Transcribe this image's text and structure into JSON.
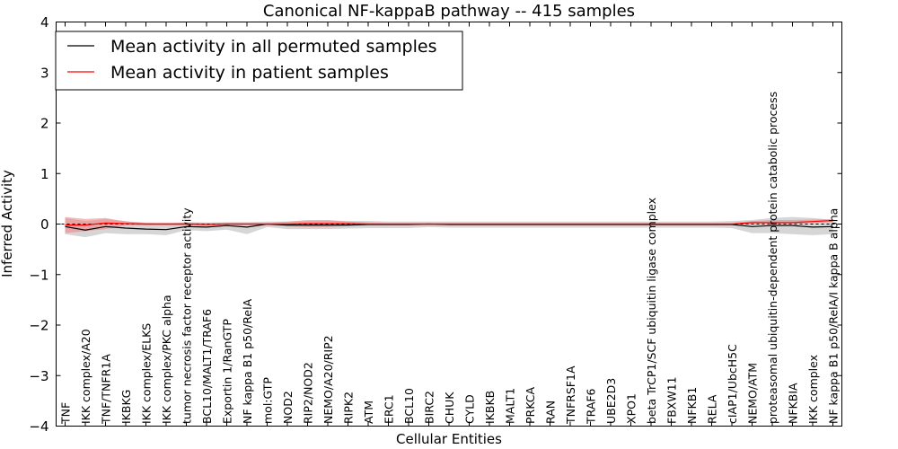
{
  "chart_data": {
    "type": "line",
    "title": "Canonical NF-kappaB pathway -- 415 samples",
    "xlabel": "Cellular Entities",
    "ylabel": "Inferred Activity",
    "ylim": [
      -4,
      4
    ],
    "yticks": [
      4,
      3,
      2,
      1,
      0,
      -1,
      -2,
      -3,
      -4
    ],
    "ytick_labels": [
      "4",
      "3",
      "2",
      "1",
      "0",
      "−1",
      "−2",
      "−3",
      "−4"
    ],
    "categories": [
      "TNF",
      "IKK complex/A20",
      "TNF/TNFR1A",
      "IKBKG",
      "IKK complex/ELKS",
      "IKK complex/PKC alpha",
      "tumor necrosis factor receptor activity",
      "BCL10/MALT1/TRAF6",
      "Exportin 1/RanGTP",
      "NF kappa B1 p50/RelA",
      "mol:GTP",
      "NOD2",
      "RIP2/NOD2",
      "NEMO/A20/RIP2",
      "RIPK2",
      "ATM",
      "ERC1",
      "BCL10",
      "BIRC2",
      "CHUK",
      "CYLD",
      "IKBKB",
      "MALT1",
      "PRKCA",
      "RAN",
      "TNFRSF1A",
      "TRAF6",
      "UBE2D3",
      "XPO1",
      "beta TrCP1/SCF ubiquitin ligase complex",
      "FBXW11",
      "NFKB1",
      "RELA",
      "cIAP1/UbcH5C",
      "NEMO/ATM",
      "proteasomal ubiquitin-dependent protein catabolic process",
      "NFKBIA",
      "IKK complex",
      "NF kappa B1 p50/RelA/I kappa B alpha"
    ],
    "legend": {
      "location": "top-left",
      "entries": [
        {
          "label": "Mean activity in all permuted samples",
          "color": "#000000"
        },
        {
          "label": "Mean activity in patient samples",
          "color": "#ff0000"
        }
      ]
    },
    "series": [
      {
        "name": "Mean activity in all permuted samples",
        "color": "#000000",
        "values": [
          -0.05,
          -0.12,
          -0.05,
          -0.08,
          -0.1,
          -0.11,
          -0.05,
          -0.06,
          -0.03,
          -0.06,
          0.0,
          -0.02,
          -0.02,
          -0.02,
          -0.02,
          -0.01,
          -0.01,
          -0.01,
          0.0,
          -0.01,
          -0.01,
          -0.01,
          -0.01,
          -0.01,
          -0.01,
          -0.01,
          -0.01,
          -0.01,
          -0.01,
          -0.01,
          -0.01,
          -0.01,
          -0.01,
          -0.01,
          -0.05,
          -0.03,
          -0.03,
          -0.06,
          -0.05
        ],
        "upper": [
          0.12,
          0.06,
          0.1,
          0.06,
          0.02,
          0.0,
          0.04,
          0.03,
          0.04,
          0.04,
          0.05,
          0.05,
          0.06,
          0.07,
          0.06,
          0.06,
          0.05,
          0.05,
          0.05,
          0.05,
          0.05,
          0.05,
          0.05,
          0.05,
          0.05,
          0.05,
          0.05,
          0.05,
          0.05,
          0.05,
          0.05,
          0.05,
          0.05,
          0.06,
          0.08,
          0.12,
          0.14,
          0.12,
          0.08
        ],
        "lower": [
          -0.2,
          -0.26,
          -0.18,
          -0.2,
          -0.2,
          -0.22,
          -0.12,
          -0.14,
          -0.11,
          -0.2,
          -0.06,
          -0.1,
          -0.1,
          -0.1,
          -0.09,
          -0.08,
          -0.08,
          -0.08,
          -0.06,
          -0.07,
          -0.07,
          -0.07,
          -0.07,
          -0.07,
          -0.07,
          -0.07,
          -0.07,
          -0.07,
          -0.07,
          -0.07,
          -0.07,
          -0.07,
          -0.07,
          -0.08,
          -0.18,
          -0.18,
          -0.2,
          -0.22,
          -0.2
        ]
      },
      {
        "name": "Mean activity in patient samples",
        "color": "#ff0000",
        "values": [
          -0.02,
          -0.02,
          0.02,
          0.01,
          0.0,
          0.0,
          0.0,
          -0.01,
          0.0,
          0.0,
          0.0,
          0.0,
          0.01,
          0.01,
          0.01,
          0.0,
          0.0,
          0.0,
          0.0,
          0.0,
          0.0,
          0.0,
          0.0,
          0.0,
          0.0,
          0.0,
          0.0,
          0.0,
          0.0,
          0.0,
          0.0,
          0.0,
          0.0,
          0.0,
          0.03,
          0.03,
          0.03,
          0.05,
          0.07
        ],
        "upper": [
          0.14,
          0.1,
          0.12,
          0.05,
          0.03,
          0.03,
          0.03,
          0.02,
          0.02,
          0.02,
          0.02,
          0.05,
          0.08,
          0.08,
          0.05,
          0.03,
          0.02,
          0.02,
          0.02,
          0.02,
          0.02,
          0.02,
          0.02,
          0.02,
          0.02,
          0.02,
          0.02,
          0.02,
          0.02,
          0.02,
          0.02,
          0.02,
          0.02,
          0.02,
          0.06,
          0.08,
          0.08,
          0.09,
          0.1
        ],
        "lower": [
          -0.18,
          -0.14,
          -0.1,
          -0.03,
          -0.03,
          -0.03,
          -0.03,
          -0.03,
          -0.02,
          -0.02,
          -0.02,
          -0.05,
          -0.06,
          -0.06,
          -0.04,
          -0.02,
          -0.02,
          -0.02,
          -0.02,
          -0.02,
          -0.02,
          -0.02,
          -0.02,
          -0.02,
          -0.02,
          -0.02,
          -0.02,
          -0.02,
          -0.02,
          -0.02,
          -0.02,
          -0.02,
          -0.02,
          -0.02,
          0.0,
          0.0,
          0.0,
          0.02,
          0.04
        ]
      }
    ],
    "reference_line": {
      "y": 0,
      "style": "dashed",
      "color": "#000000"
    }
  }
}
